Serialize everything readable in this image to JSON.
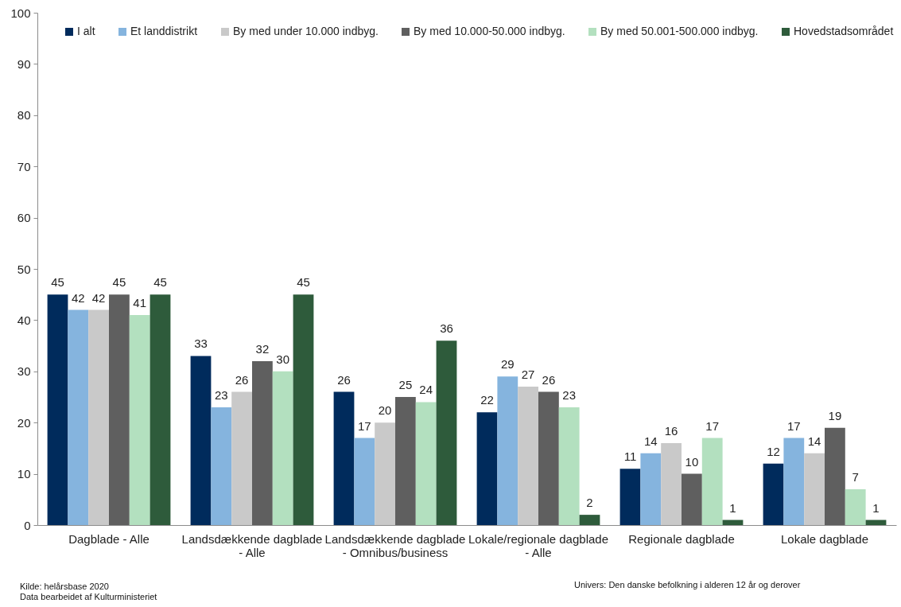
{
  "chart_data": {
    "type": "bar",
    "categories": [
      "Dagblade - Alle",
      "Landsdækkende dagblade - Alle",
      "Landsdækkende dagblade - Omnibus/business",
      "Lokale/regionale dagblade - Alle",
      "Regionale dagblade",
      "Lokale dagblade"
    ],
    "series": [
      {
        "name": "I alt",
        "color": "#002b5c",
        "values": [
          45,
          33,
          26,
          22,
          11,
          12
        ]
      },
      {
        "name": "Et landdistrikt",
        "color": "#85b4de",
        "values": [
          42,
          23,
          17,
          29,
          14,
          17
        ]
      },
      {
        "name": "By med under 10.000 indbyg.",
        "color": "#c9c9c9",
        "values": [
          42,
          26,
          20,
          27,
          16,
          14
        ]
      },
      {
        "name": "By med 10.000-50.000 indbyg.",
        "color": "#5f5f5f",
        "values": [
          45,
          32,
          25,
          26,
          10,
          19
        ]
      },
      {
        "name": "By med 50.001-500.000 indbyg.",
        "color": "#b3e0bf",
        "values": [
          41,
          30,
          24,
          23,
          17,
          7
        ]
      },
      {
        "name": "Hovedstadsområdet",
        "color": "#2e5b3b",
        "values": [
          45,
          45,
          36,
          2,
          1,
          1
        ]
      }
    ],
    "ylim": [
      0,
      100
    ],
    "yticks": [
      0,
      10,
      20,
      30,
      40,
      50,
      60,
      70,
      80,
      90,
      100
    ],
    "data_labels": true,
    "grid": false,
    "legend": "top",
    "annotations": [
      "Kilde: helårsbase 2020",
      "Data bearbeidet af Kulturministeriet",
      "Univers: Den danske befolkning i alderen 12 år og derover"
    ]
  }
}
